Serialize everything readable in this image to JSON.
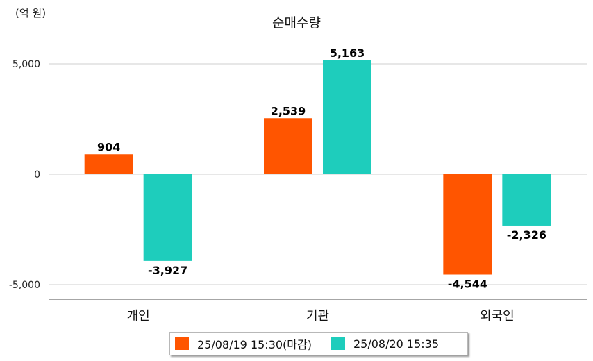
{
  "chart_data": {
    "type": "bar",
    "title": "순매수량",
    "unit_label": "(억 원)",
    "categories": [
      "개인",
      "기관",
      "외국인"
    ],
    "series": [
      {
        "name": "25/08/19 15:30(마감)",
        "color": "#ff5500",
        "values": [
          904,
          2539,
          -4544
        ]
      },
      {
        "name": "25/08/20 15:35",
        "color": "#1ecdbc",
        "values": [
          -3927,
          5163,
          -2326
        ]
      }
    ],
    "data_labels": [
      [
        "904",
        "2,539",
        "-4,544"
      ],
      [
        "-3,927",
        "5,163",
        "-2,326"
      ]
    ],
    "yticks": [
      5000,
      0,
      -5000
    ],
    "ytick_labels": [
      "5,000",
      "0",
      "-5,000"
    ],
    "ylim": [
      -5800,
      5800
    ],
    "grid": true,
    "legend_position": "bottom"
  }
}
